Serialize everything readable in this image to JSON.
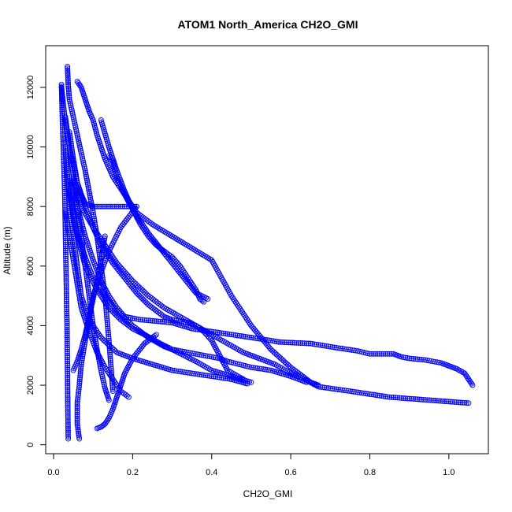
{
  "chart_data": {
    "type": "scatter",
    "title": "ATOM1 North_America CH2O_GMI",
    "xlabel": "CH2O_GMI",
    "ylabel": "Altitude (m)",
    "xlim": [
      -0.02,
      1.1
    ],
    "ylim": [
      -300,
      13400
    ],
    "xticks": [
      0.0,
      0.2,
      0.4,
      0.6,
      0.8,
      1.0
    ],
    "xtick_labels": [
      "0.0",
      "0.2",
      "0.4",
      "0.6",
      "0.8",
      "1.0"
    ],
    "yticks": [
      0,
      2000,
      4000,
      6000,
      8000,
      10000,
      12000
    ],
    "ytick_labels": [
      "0",
      "2000",
      "4000",
      "6000",
      "8000",
      "10000",
      "12000"
    ],
    "grid": false,
    "marker": "open-circle",
    "line_style": "connected",
    "color": "#0000ff",
    "series": [
      {
        "x": [
          0.035,
          0.036,
          0.037,
          0.04,
          0.05,
          0.06,
          0.07,
          0.08,
          0.09,
          0.1,
          0.11,
          0.12,
          0.13,
          0.14,
          0.15
        ],
        "y": [
          12700,
          12400,
          12100,
          11600,
          11000,
          10400,
          9800,
          9200,
          8500,
          7800,
          7000,
          6000,
          5000,
          3500,
          1800
        ]
      },
      {
        "x": [
          0.06,
          0.07,
          0.08,
          0.09,
          0.1,
          0.11,
          0.13,
          0.15,
          0.18,
          0.21,
          0.25,
          0.3,
          0.35,
          0.4,
          0.45,
          0.5,
          0.55,
          0.6,
          0.65,
          0.67
        ],
        "y": [
          12200,
          12000,
          11600,
          11200,
          10900,
          10400,
          9600,
          9000,
          8400,
          7800,
          7400,
          7000,
          6600,
          6200,
          5000,
          4000,
          3200,
          2600,
          2100,
          2000
        ]
      },
      {
        "x": [
          0.02,
          0.025,
          0.03,
          0.04,
          0.05,
          0.06,
          0.07,
          0.08,
          0.1,
          0.12,
          0.15,
          0.18,
          0.21
        ],
        "y": [
          12000,
          11400,
          10800,
          10000,
          9400,
          8800,
          8400,
          8100,
          8000,
          8000,
          8000,
          8000,
          8000
        ]
      },
      {
        "x": [
          0.21,
          0.17,
          0.14,
          0.12,
          0.1,
          0.09,
          0.08,
          0.07,
          0.065,
          0.06,
          0.06,
          0.065
        ],
        "y": [
          8000,
          7300,
          6500,
          5800,
          5000,
          4200,
          3500,
          2700,
          2000,
          1400,
          700,
          200
        ]
      },
      {
        "x": [
          0.03,
          0.035,
          0.045,
          0.06,
          0.08,
          0.11,
          0.14,
          0.17,
          0.2,
          0.23,
          0.27,
          0.3,
          0.33,
          0.36,
          0.4,
          0.45,
          0.5
        ],
        "y": [
          9800,
          9000,
          8000,
          7000,
          6000,
          5200,
          4600,
          4200,
          3900,
          3700,
          3400,
          3200,
          3000,
          2800,
          2500,
          2300,
          2100
        ]
      },
      {
        "x": [
          0.04,
          0.06,
          0.08,
          0.1,
          0.12,
          0.14,
          0.16,
          0.18,
          0.22,
          0.26,
          0.3,
          0.35,
          0.4,
          0.45,
          0.5,
          0.55,
          0.57
        ],
        "y": [
          9000,
          8000,
          7000,
          6200,
          5500,
          5000,
          4600,
          4300,
          4200,
          4150,
          4100,
          3900,
          3800,
          3700,
          3600,
          3500,
          3450
        ]
      },
      {
        "x": [
          0.57,
          0.65,
          0.72,
          0.77,
          0.8,
          0.82,
          0.84,
          0.86,
          0.88,
          0.9,
          0.94,
          0.98,
          1.0,
          1.02,
          1.04,
          1.05,
          1.06
        ],
        "y": [
          3450,
          3400,
          3250,
          3150,
          3050,
          3050,
          3050,
          3050,
          2950,
          2900,
          2850,
          2750,
          2650,
          2550,
          2400,
          2200,
          2000
        ]
      },
      {
        "x": [
          0.05,
          0.07,
          0.1,
          0.13,
          0.16,
          0.2,
          0.24,
          0.28,
          0.32,
          0.36,
          0.4,
          0.44,
          0.48,
          0.52,
          0.56,
          0.6,
          0.62,
          0.67,
          0.75,
          0.85,
          0.95,
          1.05
        ],
        "y": [
          8800,
          8000,
          7300,
          6700,
          6100,
          5500,
          5000,
          4600,
          4300,
          4000,
          3700,
          3400,
          3100,
          2900,
          2700,
          2400,
          2300,
          1950,
          1800,
          1600,
          1500,
          1400
        ]
      },
      {
        "x": [
          0.04,
          0.05,
          0.06,
          0.08,
          0.1,
          0.13,
          0.16,
          0.2,
          0.24,
          0.28,
          0.3,
          0.32,
          0.34,
          0.36,
          0.38,
          0.4,
          0.42,
          0.44,
          0.47,
          0.5,
          0.55,
          0.6,
          0.64
        ],
        "y": [
          8500,
          7800,
          7100,
          6300,
          5600,
          5000,
          4500,
          4000,
          3600,
          3300,
          3200,
          3150,
          3100,
          3050,
          3000,
          2950,
          2900,
          2800,
          2700,
          2600,
          2500,
          2300,
          2100
        ]
      },
      {
        "x": [
          0.03,
          0.035,
          0.04,
          0.05,
          0.06,
          0.07,
          0.09,
          0.12,
          0.16,
          0.2,
          0.25,
          0.3,
          0.35,
          0.4,
          0.45,
          0.49
        ],
        "y": [
          10000,
          9000,
          8000,
          7000,
          6000,
          5000,
          4200,
          3600,
          3100,
          2900,
          2700,
          2500,
          2400,
          2300,
          2200,
          2050
        ]
      },
      {
        "x": [
          0.04,
          0.05,
          0.06,
          0.08,
          0.1,
          0.12,
          0.15,
          0.18,
          0.21,
          0.24,
          0.26,
          0.28,
          0.3,
          0.32,
          0.34,
          0.36,
          0.38,
          0.4,
          0.42,
          0.44,
          0.48
        ],
        "y": [
          10500,
          9600,
          8800,
          8000,
          7300,
          6700,
          6100,
          5600,
          5100,
          4700,
          4500,
          4300,
          4200,
          4150,
          4100,
          4000,
          3800,
          3500,
          3000,
          2500,
          2200
        ]
      },
      {
        "x": [
          0.12,
          0.14,
          0.16,
          0.18,
          0.2,
          0.22,
          0.24,
          0.26,
          0.28,
          0.3,
          0.32,
          0.34,
          0.36,
          0.37,
          0.38
        ],
        "y": [
          10900,
          10000,
          9200,
          8500,
          7900,
          7400,
          7000,
          6700,
          6500,
          6300,
          6000,
          5600,
          5200,
          4900,
          4800
        ]
      },
      {
        "x": [
          0.02,
          0.022,
          0.025,
          0.028,
          0.03,
          0.032,
          0.034,
          0.035,
          0.036,
          0.037
        ],
        "y": [
          12100,
          11000,
          9800,
          8500,
          7000,
          5500,
          4000,
          2600,
          1200,
          200
        ]
      },
      {
        "x": [
          0.03,
          0.04,
          0.05,
          0.06,
          0.07,
          0.08,
          0.09,
          0.1,
          0.11,
          0.12,
          0.13,
          0.14
        ],
        "y": [
          11000,
          10000,
          9000,
          8000,
          7000,
          6000,
          5000,
          4000,
          3200,
          2500,
          1900,
          1500
        ]
      },
      {
        "x": [
          0.11,
          0.12,
          0.13,
          0.14,
          0.15,
          0.16,
          0.17,
          0.18,
          0.2,
          0.23,
          0.26
        ],
        "y": [
          550,
          600,
          700,
          900,
          1200,
          1600,
          2000,
          2400,
          2900,
          3400,
          3700
        ]
      },
      {
        "x": [
          0.14,
          0.145,
          0.15,
          0.16,
          0.18,
          0.2,
          0.22,
          0.24,
          0.27,
          0.3,
          0.33,
          0.36,
          0.39
        ],
        "y": [
          9700,
          9600,
          9500,
          9000,
          8400,
          7900,
          7500,
          7100,
          6600,
          6100,
          5600,
          5100,
          4900
        ]
      },
      {
        "x": [
          0.03,
          0.04,
          0.05,
          0.06,
          0.07,
          0.09,
          0.11,
          0.13,
          0.15,
          0.17,
          0.19
        ],
        "y": [
          7800,
          7000,
          6200,
          5400,
          4600,
          3800,
          3100,
          2600,
          2200,
          1800,
          1600
        ]
      },
      {
        "x": [
          0.05,
          0.06,
          0.07,
          0.08,
          0.09,
          0.1,
          0.11,
          0.12,
          0.13
        ],
        "y": [
          2500,
          2800,
          3200,
          3700,
          4300,
          4900,
          5500,
          6200,
          7000
        ]
      }
    ]
  }
}
